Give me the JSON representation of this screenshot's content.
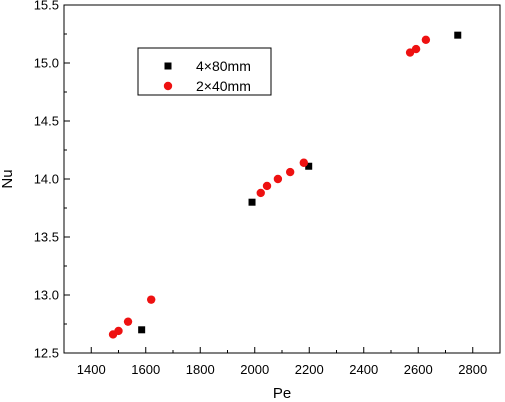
{
  "chart_data": {
    "type": "scatter",
    "xlabel": "Pe",
    "ylabel": "Nu",
    "xlim": [
      1300,
      2900
    ],
    "ylim": [
      12.5,
      15.5
    ],
    "x_ticks": [
      "1400",
      "1600",
      "1800",
      "2000",
      "2200",
      "2400",
      "2600",
      "2800"
    ],
    "y_ticks": [
      "12.5",
      "13.0",
      "13.5",
      "14.0",
      "14.5",
      "15.0",
      "15.5"
    ],
    "grid": false,
    "legend_position": "top-left",
    "series": [
      {
        "name": "4×80mm",
        "marker": "square",
        "color": "#000000",
        "points": [
          {
            "x": 1585,
            "y": 12.7
          },
          {
            "x": 1990,
            "y": 13.8
          },
          {
            "x": 2198,
            "y": 14.11
          },
          {
            "x": 2745,
            "y": 15.24
          }
        ]
      },
      {
        "name": "2×40mm",
        "marker": "circle",
        "color": "#ee1111",
        "points": [
          {
            "x": 1480,
            "y": 12.66
          },
          {
            "x": 1500,
            "y": 12.69
          },
          {
            "x": 1535,
            "y": 12.77
          },
          {
            "x": 1620,
            "y": 12.96
          },
          {
            "x": 2022,
            "y": 13.88
          },
          {
            "x": 2045,
            "y": 13.94
          },
          {
            "x": 2085,
            "y": 14.0
          },
          {
            "x": 2130,
            "y": 14.06
          },
          {
            "x": 2180,
            "y": 14.14
          },
          {
            "x": 2570,
            "y": 15.09
          },
          {
            "x": 2592,
            "y": 15.12
          },
          {
            "x": 2628,
            "y": 15.2
          }
        ]
      }
    ]
  }
}
